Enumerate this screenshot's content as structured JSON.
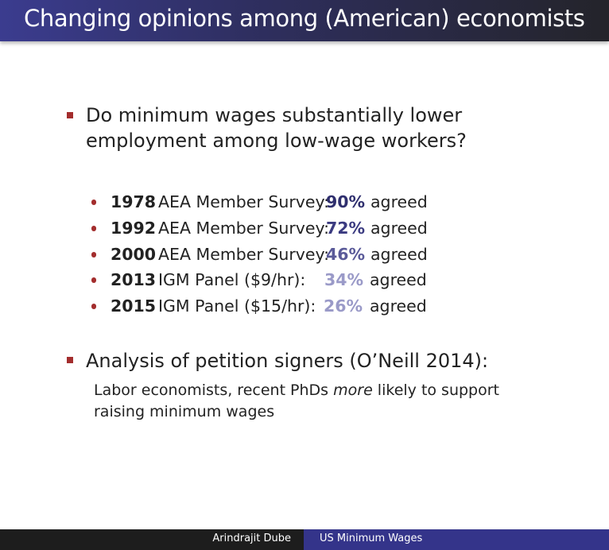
{
  "slide": {
    "title": "Changing opinions among (American) economists"
  },
  "question": {
    "text": "Do minimum wages substantially lower employment among low-wage workers?"
  },
  "surveys": [
    {
      "year": "1978",
      "source": "AEA Member Survey:",
      "percent": "90%",
      "suffix": "agreed",
      "color": "#2f2f6e"
    },
    {
      "year": "1992",
      "source": "AEA Member Survey:",
      "percent": "72%",
      "suffix": "agreed",
      "color": "#3b3b80"
    },
    {
      "year": "2000",
      "source": "AEA Member Survey:",
      "percent": "46%",
      "suffix": "agreed",
      "color": "#5a5a99"
    },
    {
      "year": "2013",
      "source": "IGM Panel ($9/hr):",
      "percent": "34%",
      "suffix": "agreed",
      "color": "#9a9ac8"
    },
    {
      "year": "2015",
      "source": "IGM Panel ($15/hr):",
      "percent": "26%",
      "suffix": "agreed",
      "color": "#9a9ac8"
    }
  ],
  "analysis": {
    "heading": "Analysis of petition signers (O’Neill 2014):",
    "detail_before": "Labor economists, recent PhDs ",
    "detail_emphasis": "more",
    "detail_after": " likely to support raising minimum wages"
  },
  "footer": {
    "author": "Arindrajit Dube",
    "short_title": "US Minimum Wages"
  },
  "colors": {
    "bullet": "#a32d2d",
    "title_bar_start": "#3b3c8f",
    "footer_right": "#34348a"
  }
}
